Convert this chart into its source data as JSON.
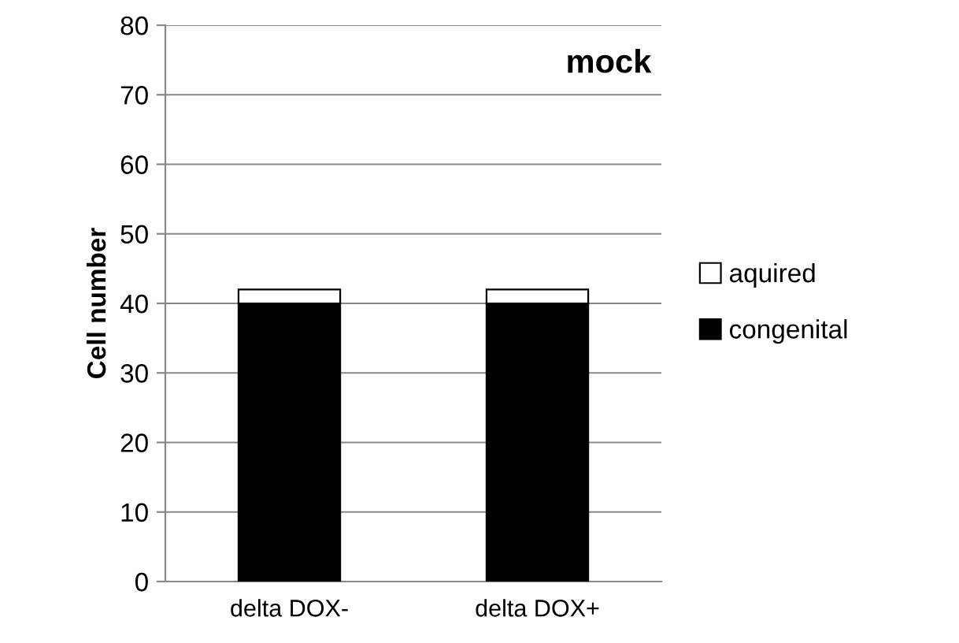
{
  "chart_data": {
    "type": "bar",
    "title": "mock",
    "ylabel": "Cell number",
    "categories": [
      "delta DOX-",
      "delta DOX+"
    ],
    "stacked": true,
    "series": [
      {
        "name": "congenital",
        "color": "#000000",
        "values": [
          40,
          40
        ]
      },
      {
        "name": "aquired",
        "color": "#ffffff",
        "values": [
          2,
          2
        ]
      }
    ],
    "ylim": [
      0,
      80
    ],
    "yticks": [
      0,
      10,
      20,
      30,
      40,
      50,
      60,
      70,
      80
    ],
    "grid": "y",
    "legend": "right"
  }
}
